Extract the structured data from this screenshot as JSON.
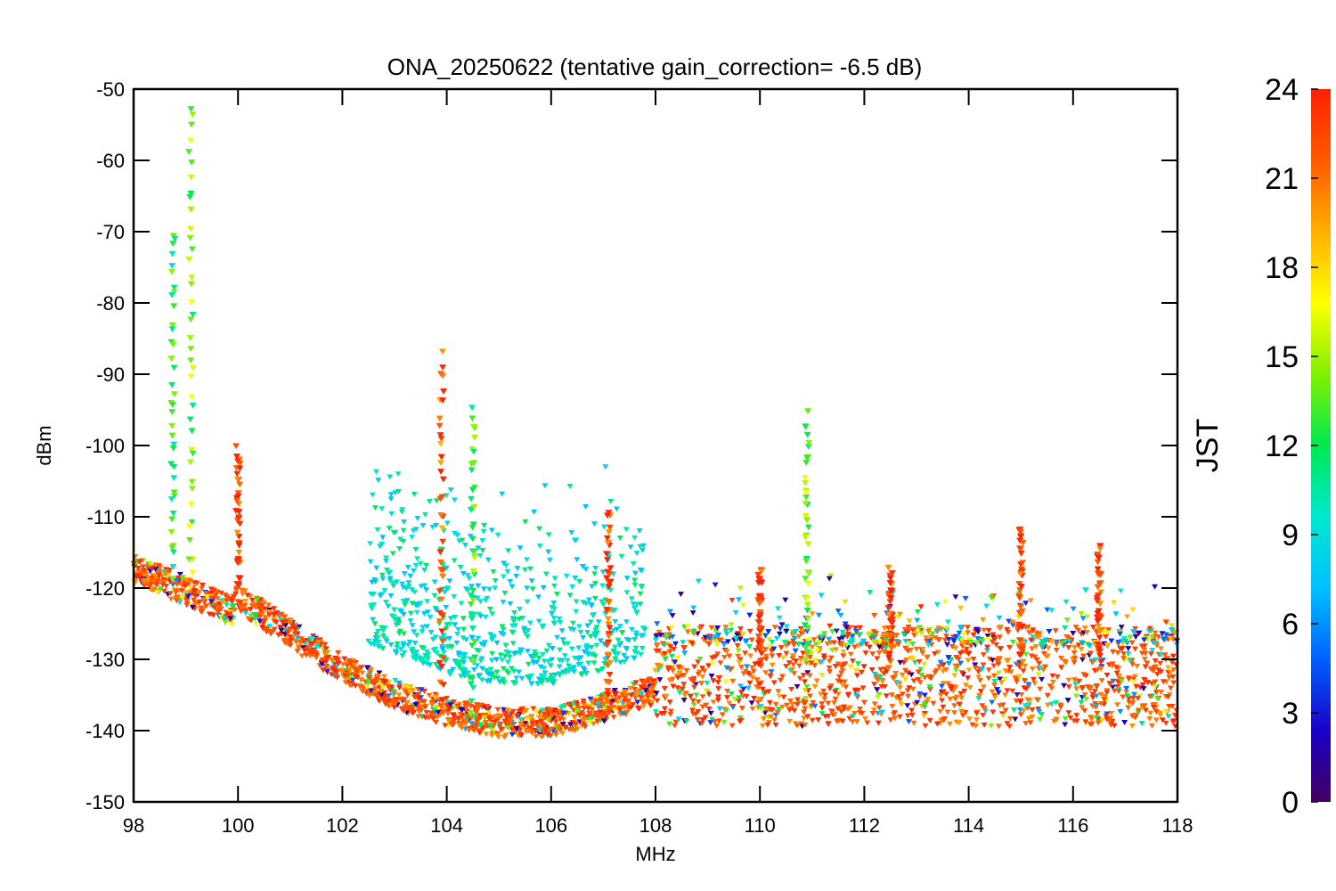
{
  "chart_data": {
    "type": "scatter",
    "title": "ONA_20250622 (tentative gain_correction= -6.5 dB)",
    "xlabel": "MHz",
    "ylabel": "dBm",
    "xlim": [
      98,
      118
    ],
    "ylim": [
      -150,
      -50
    ],
    "x_ticks": [
      98,
      100,
      102,
      104,
      106,
      108,
      110,
      112,
      114,
      116,
      118
    ],
    "y_ticks": [
      -50,
      -60,
      -70,
      -80,
      -90,
      -100,
      -110,
      -120,
      -130,
      -140,
      -150
    ],
    "grid": false,
    "marker": "downward-triangle",
    "colorbar": {
      "label": "JST",
      "range": [
        0,
        24
      ],
      "ticks": [
        0,
        3,
        6,
        9,
        12,
        15,
        18,
        21,
        24
      ],
      "colormap": [
        "#440060",
        "#1a00c8",
        "#0060ff",
        "#00c0ff",
        "#00e8d0",
        "#00e850",
        "#80f000",
        "#ffff00",
        "#ffb000",
        "#ff5a00",
        "#ff2000"
      ]
    },
    "noise_floor": [
      {
        "x": 98.0,
        "y": -117
      },
      {
        "x": 99.0,
        "y": -120
      },
      {
        "x": 99.9,
        "y": -123
      },
      {
        "x": 100.0,
        "y": -121
      },
      {
        "x": 101.0,
        "y": -126
      },
      {
        "x": 102.0,
        "y": -131
      },
      {
        "x": 103.0,
        "y": -134.5
      },
      {
        "x": 104.0,
        "y": -137
      },
      {
        "x": 105.0,
        "y": -138.5
      },
      {
        "x": 106.0,
        "y": -138.5
      },
      {
        "x": 107.0,
        "y": -136.5
      },
      {
        "x": 107.95,
        "y": -134
      },
      {
        "x": 108.0,
        "y": -131
      },
      {
        "x": 118.0,
        "y": -131
      }
    ],
    "strong_signals": [
      {
        "x": 98.75,
        "top": -70,
        "hour": 12
      },
      {
        "x": 99.1,
        "top": -52,
        "hour": 14
      },
      {
        "x": 100.0,
        "top": -100.5,
        "hour": 23
      },
      {
        "x": 103.9,
        "top": -87,
        "hour": 22
      },
      {
        "x": 104.5,
        "top": -94.5,
        "hour": 13
      },
      {
        "x": 107.1,
        "top": -109,
        "hour": 23
      },
      {
        "x": 110.0,
        "top": -117,
        "hour": 23
      },
      {
        "x": 110.9,
        "top": -96,
        "hour": 14
      },
      {
        "x": 112.5,
        "top": -118,
        "hour": 23
      },
      {
        "x": 115.0,
        "top": -111,
        "hour": 23
      },
      {
        "x": 116.5,
        "top": -114,
        "hour": 23
      }
    ]
  }
}
